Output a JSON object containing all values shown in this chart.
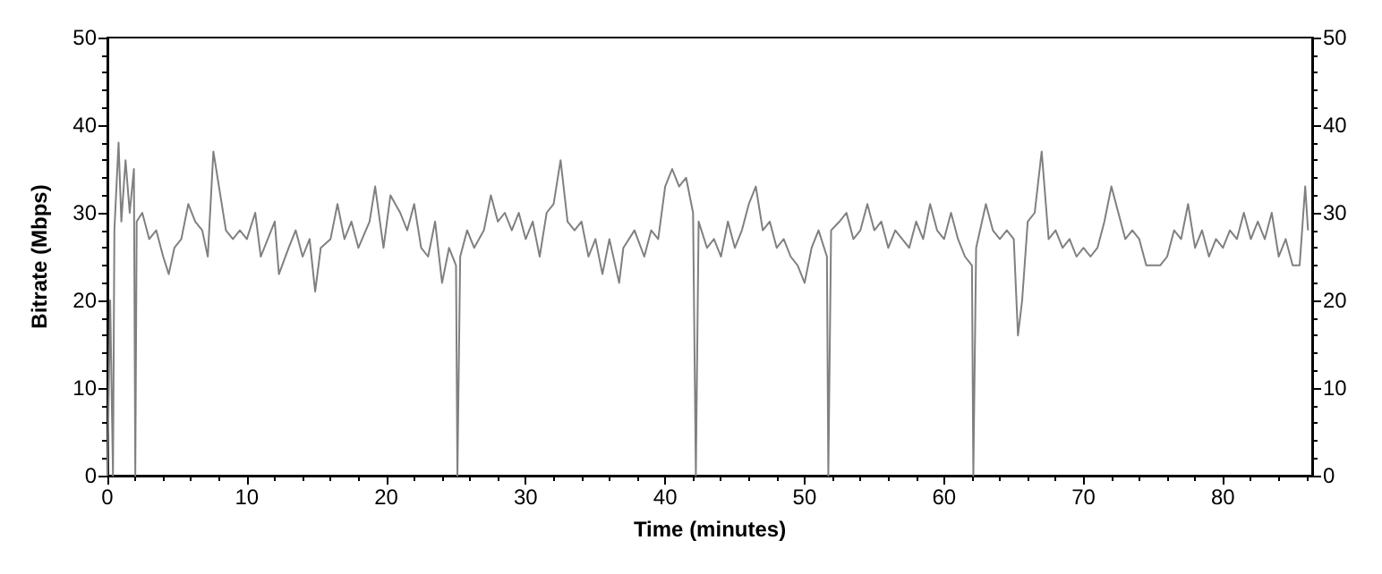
{
  "chart_data": {
    "type": "line",
    "xlabel": "Time (minutes)",
    "ylabel": "Bitrate (Mbps)",
    "xlim": [
      0,
      86.4
    ],
    "xticks": [
      0,
      10,
      20,
      30,
      40,
      50,
      60,
      70,
      80
    ],
    "ylim": [
      0,
      50
    ],
    "yticks": [
      0,
      10,
      20,
      30,
      40,
      50
    ],
    "y2lim": [
      0,
      50
    ],
    "y2ticks": [
      0,
      10,
      20,
      30,
      40,
      50
    ],
    "grid": false,
    "marker": "none",
    "line_style": "solid",
    "series": [
      {
        "color": "#808080",
        "x": [
          0,
          0.2,
          0.4,
          0.5,
          0.8,
          1.0,
          1.3,
          1.6,
          1.9,
          2.0,
          2.1,
          2.5,
          3.0,
          3.5,
          4.0,
          4.4,
          4.8,
          5.3,
          5.8,
          6.3,
          6.8,
          7.2,
          7.6,
          8.0,
          8.5,
          9.0,
          9.5,
          10.0,
          10.6,
          11.0,
          11.5,
          12.0,
          12.3,
          13.0,
          13.5,
          14.0,
          14.5,
          14.9,
          15.3,
          16.0,
          16.5,
          17.0,
          17.5,
          18.0,
          18.8,
          19.2,
          19.8,
          20.3,
          21.0,
          21.5,
          22.0,
          22.5,
          23.0,
          23.5,
          24.0,
          24.5,
          25.0,
          25.1,
          25.3,
          25.8,
          26.3,
          27.0,
          27.5,
          28.0,
          28.5,
          29.0,
          29.5,
          30.0,
          30.5,
          31.0,
          31.5,
          32.0,
          32.5,
          33.0,
          33.5,
          34.0,
          34.5,
          35.0,
          35.5,
          36.0,
          36.7,
          37.0,
          37.8,
          38.5,
          39.0,
          39.5,
          40.0,
          40.5,
          41.0,
          41.5,
          42.0,
          42.2,
          42.4,
          43.0,
          43.5,
          44.0,
          44.5,
          45.0,
          45.5,
          46.0,
          46.5,
          47.0,
          47.5,
          48.0,
          48.5,
          49.0,
          49.5,
          50.0,
          50.5,
          51.0,
          51.6,
          51.7,
          51.9,
          52.5,
          53.0,
          53.5,
          54.0,
          54.5,
          55.0,
          55.5,
          56.0,
          56.5,
          57.0,
          57.5,
          58.0,
          58.5,
          59.0,
          59.5,
          60.0,
          60.5,
          61.0,
          61.5,
          62.0,
          62.1,
          62.3,
          63.0,
          63.5,
          64.0,
          64.5,
          65.0,
          65.3,
          65.6,
          66.0,
          66.5,
          67.0,
          67.5,
          68.0,
          68.5,
          69.0,
          69.5,
          70.0,
          70.5,
          71.0,
          71.5,
          72.0,
          72.5,
          73.0,
          73.5,
          74.0,
          74.5,
          75.0,
          75.5,
          76.0,
          76.5,
          77.0,
          77.5,
          78.0,
          78.5,
          79.0,
          79.5,
          80.0,
          80.5,
          81.0,
          81.5,
          82.0,
          82.5,
          83.0,
          83.5,
          84.0,
          84.5,
          85.0,
          85.5,
          85.9,
          86.1
        ],
        "values": [
          0,
          20,
          0,
          28,
          38,
          29,
          36,
          30,
          35,
          0,
          29,
          30,
          27,
          28,
          25,
          23,
          26,
          27,
          31,
          29,
          28,
          25,
          37,
          33,
          28,
          27,
          28,
          27,
          30,
          25,
          27,
          29,
          23,
          26,
          28,
          25,
          27,
          21,
          26,
          27,
          31,
          27,
          29,
          26,
          29,
          33,
          26,
          32,
          30,
          28,
          31,
          26,
          25,
          29,
          22,
          26,
          24,
          0,
          25,
          28,
          26,
          28,
          32,
          29,
          30,
          28,
          30,
          27,
          29,
          25,
          30,
          31,
          36,
          29,
          28,
          29,
          25,
          27,
          23,
          27,
          22,
          26,
          28,
          25,
          28,
          27,
          33,
          35,
          33,
          34,
          30,
          0,
          29,
          26,
          27,
          25,
          29,
          26,
          28,
          31,
          33,
          28,
          29,
          26,
          27,
          25,
          24,
          22,
          26,
          28,
          25,
          0,
          28,
          29,
          30,
          27,
          28,
          31,
          28,
          29,
          26,
          28,
          27,
          26,
          29,
          27,
          31,
          28,
          27,
          30,
          27,
          25,
          24,
          0,
          26,
          31,
          28,
          27,
          28,
          27,
          16,
          20,
          29,
          30,
          37,
          27,
          28,
          26,
          27,
          25,
          26,
          25,
          26,
          29,
          33,
          30,
          27,
          28,
          27,
          24,
          24,
          24,
          25,
          28,
          27,
          31,
          26,
          28,
          25,
          27,
          26,
          28,
          27,
          30,
          27,
          29,
          27,
          30,
          25,
          27,
          24,
          24,
          33,
          28
        ]
      }
    ]
  }
}
